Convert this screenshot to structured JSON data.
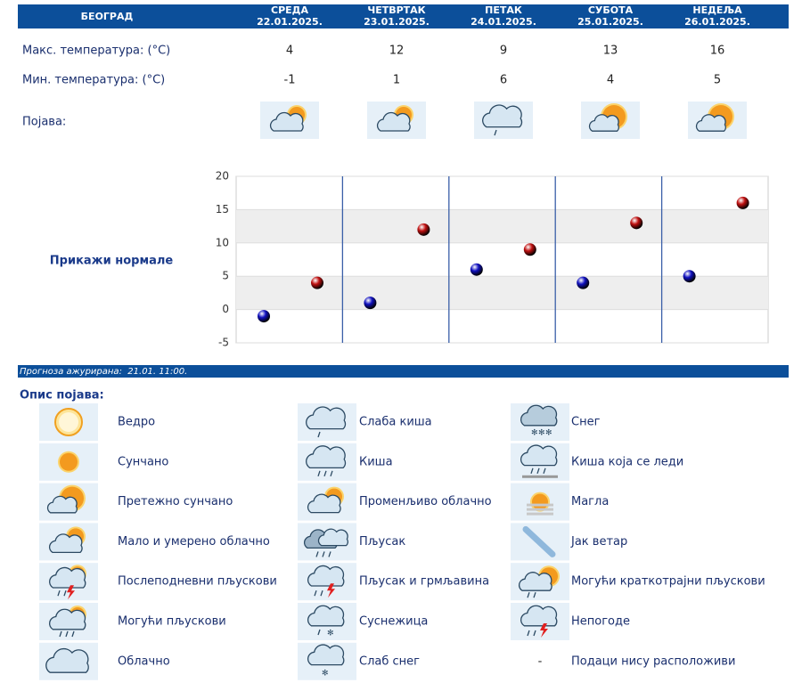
{
  "header": {
    "city": "БЕОГРАД",
    "days": [
      {
        "name": "СРЕДА",
        "date": "22.01.2025."
      },
      {
        "name": "ЧЕТВРТАК",
        "date": "23.01.2025."
      },
      {
        "name": "ПЕТАК",
        "date": "24.01.2025."
      },
      {
        "name": "СУБОТА",
        "date": "25.01.2025."
      },
      {
        "name": "НЕДЕЉА",
        "date": "26.01.2025."
      }
    ]
  },
  "table": {
    "max": {
      "label": "Макс. температура: (°C)",
      "values": [
        4,
        12,
        9,
        13,
        16
      ]
    },
    "min": {
      "label": "Мин. температура: (°C)",
      "values": [
        -1,
        1,
        6,
        4,
        5
      ]
    },
    "phenomena": {
      "label": "Појава:"
    }
  },
  "normals_link": "Прикажи нормале",
  "chart_data": {
    "type": "scatter",
    "ylim": [
      -5,
      20
    ],
    "yticks": [
      -5,
      0,
      5,
      10,
      15,
      20
    ],
    "grid": true,
    "series": [
      {
        "color": "#1010c0",
        "values": [
          -1,
          1,
          6,
          4,
          5
        ]
      },
      {
        "color": "#c01010",
        "values": [
          4,
          12,
          9,
          13,
          16
        ]
      }
    ]
  },
  "updated": "Прогноза ажурирана:  21.01. 11:00.",
  "legend": {
    "title": "Опис појава:",
    "columns": [
      [
        {
          "label": "Ведро"
        },
        {
          "label": "Сунчано"
        },
        {
          "label": "Претежно сунчано"
        },
        {
          "label": "Мало и умерено облачно"
        },
        {
          "label": "Послеподневни пљускови"
        },
        {
          "label": "Могући пљускови"
        },
        {
          "label": "Облачно"
        }
      ],
      [
        {
          "label": "Слаба киша"
        },
        {
          "label": "Киша"
        },
        {
          "label": "Променљиво облачно"
        },
        {
          "label": "Пљусак"
        },
        {
          "label": "Пљусак и грмљавина"
        },
        {
          "label": "Суснежица"
        },
        {
          "label": "Слаб снег"
        }
      ],
      [
        {
          "label": "Снег"
        },
        {
          "label": "Киша која се леди"
        },
        {
          "label": "Магла"
        },
        {
          "label": "Јак ветар"
        },
        {
          "label": "Могући краткотрајни пљускови"
        },
        {
          "label": "Непогоде"
        },
        {
          "label": "Подаци нису расположиви",
          "icon_text": "-"
        }
      ]
    ]
  }
}
